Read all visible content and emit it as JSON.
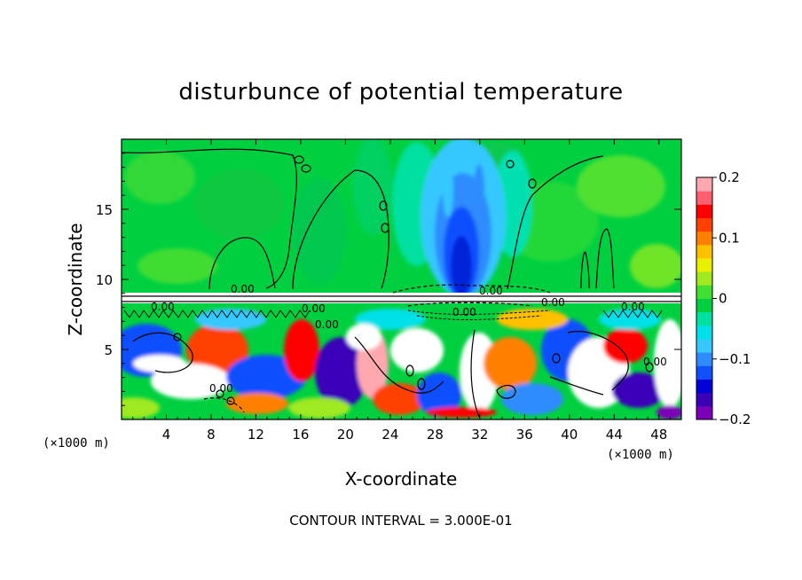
{
  "chart_data": {
    "type": "heatmap",
    "title": "disturbunce of potential temperature",
    "xlabel": "X-coordinate",
    "ylabel": "Z-coordinate",
    "x_unit_label": "(×1000 m)",
    "y_unit_label": "(×1000 m)",
    "xlim": [
      0,
      50
    ],
    "ylim": [
      0,
      20
    ],
    "x_ticks": [
      4,
      8,
      12,
      16,
      20,
      24,
      28,
      32,
      36,
      40,
      44,
      48
    ],
    "y_ticks": [
      5,
      10,
      15
    ],
    "colorbar": {
      "range": [
        -0.2,
        0.2
      ],
      "tick_labels": [
        "0.2",
        "0.1",
        "0",
        "−0.1",
        "−0.2"
      ],
      "tick_values": [
        0.2,
        0.1,
        0,
        -0.1,
        -0.2
      ],
      "colors": [
        "#7b00b5",
        "#3a00b8",
        "#0000d8",
        "#1050ff",
        "#2f8cff",
        "#36c8ff",
        "#00e0e8",
        "#00e0a0",
        "#00d040",
        "#40e030",
        "#a0e820",
        "#e8f000",
        "#ffc000",
        "#ff8000",
        "#ff4000",
        "#ff0000",
        "#ff6070",
        "#ffa8b0"
      ]
    },
    "contour_interval_label": "CONTOUR INTERVAL = 3.000E-01",
    "contour_labels": [
      "0.00",
      "0.00",
      "0.00",
      "0.00",
      "0.00",
      "0.00",
      "0.00",
      "0.00",
      "0.00",
      "0.00"
    ],
    "grid": false
  }
}
